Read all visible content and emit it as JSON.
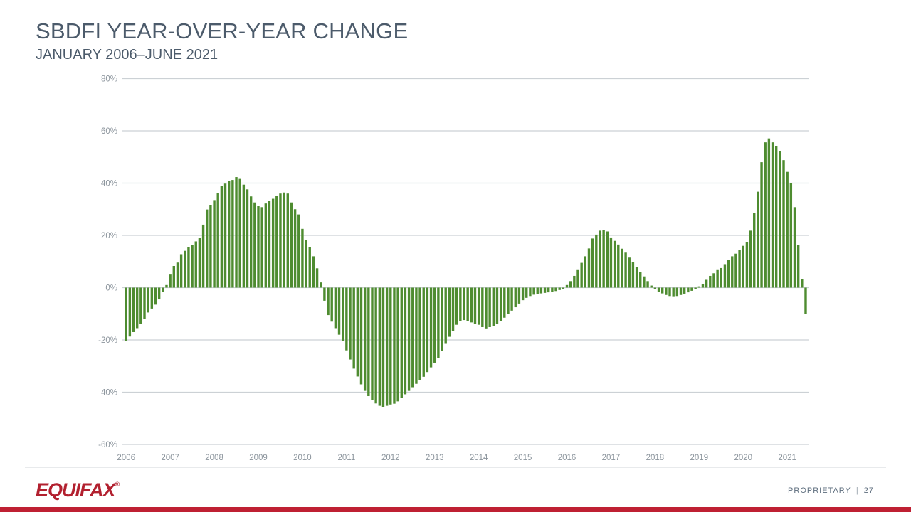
{
  "header": {
    "title": "SBDFI YEAR-OVER-YEAR CHANGE",
    "subtitle": "JANUARY 2006–JUNE 2021"
  },
  "footer": {
    "logo_text": "EQUIFAX",
    "logo_reg": "®",
    "proprietary": "PROPRIETARY",
    "divider": "|",
    "page": "27"
  },
  "colors": {
    "bar_green": "#4e8c30",
    "accent_red": "#bf2033",
    "title_slate": "#4c5b6b",
    "axis_gray": "#8b949c",
    "gridline_gray": "#ccd1d5",
    "footer_gray": "#5d6d7d"
  },
  "chart_data": {
    "type": "bar",
    "title": "SBDFI YEAR-OVER-YEAR CHANGE",
    "subtitle": "JANUARY 2006–JUNE 2021",
    "xlabel": "",
    "ylabel": "",
    "unit": "%",
    "ylim": [
      -60,
      80
    ],
    "grid": "horizontal",
    "legend": "none",
    "y_ticks": [
      {
        "value": 80,
        "label": "80%"
      },
      {
        "value": 60,
        "label": "60%"
      },
      {
        "value": 40,
        "label": "40%"
      },
      {
        "value": 20,
        "label": "20%"
      },
      {
        "value": 0,
        "label": "0%"
      },
      {
        "value": -20,
        "label": "-20%"
      },
      {
        "value": -40,
        "label": "-40%"
      },
      {
        "value": -60,
        "label": "-60%"
      }
    ],
    "x_tick_years": [
      "2006",
      "2007",
      "2008",
      "2009",
      "2010",
      "2011",
      "2012",
      "2013",
      "2014",
      "2015",
      "2016",
      "2017",
      "2018",
      "2019",
      "2020",
      "2021"
    ],
    "frequency": "monthly",
    "start_month": "2006-01",
    "end_month": "2021-06",
    "values_by_year": {
      "2006": [
        -20.5,
        -18.7,
        -17.0,
        -15.5,
        -14.0,
        -12.0,
        -9.5,
        -8.0,
        -6.5,
        -4.5,
        -1.5,
        1.0
      ],
      "2007": [
        5.0,
        8.3,
        9.6,
        12.8,
        14.1,
        15.5,
        16.4,
        17.7,
        19.1,
        24.1,
        29.9,
        31.7
      ],
      "2008": [
        33.5,
        36.2,
        38.9,
        39.8,
        40.9,
        41.2,
        42.3,
        41.6,
        39.4,
        37.6,
        34.9,
        32.6
      ],
      "2009": [
        31.3,
        30.8,
        32.2,
        33.1,
        34.0,
        35.0,
        36.0,
        36.4,
        36.0,
        32.6,
        30.0,
        28.0
      ],
      "2010": [
        22.5,
        18.2,
        15.5,
        12.0,
        7.4,
        2.0,
        -5.0,
        -10.5,
        -13.0,
        -15.5,
        -18.0,
        -20.5
      ],
      "2011": [
        -24.0,
        -27.5,
        -31.0,
        -34.0,
        -37.0,
        -39.5,
        -41.5,
        -43.0,
        -44.3,
        -45.2,
        -45.6,
        -45.2
      ],
      "2012": [
        -44.7,
        -44.4,
        -43.5,
        -42.2,
        -40.8,
        -39.5,
        -38.1,
        -36.8,
        -35.4,
        -34.1,
        -32.3,
        -30.5
      ],
      "2013": [
        -28.7,
        -26.9,
        -24.2,
        -21.5,
        -18.8,
        -16.5,
        -14.2,
        -12.9,
        -12.4,
        -12.9,
        -13.3,
        -13.8
      ],
      "2014": [
        -14.2,
        -15.1,
        -15.6,
        -15.1,
        -14.7,
        -13.8,
        -12.9,
        -11.5,
        -10.2,
        -8.8,
        -7.5,
        -6.1
      ],
      "2015": [
        -4.8,
        -3.9,
        -3.2,
        -2.7,
        -2.4,
        -2.2,
        -2.0,
        -1.8,
        -1.6,
        -1.3,
        -0.9,
        -0.4
      ],
      "2016": [
        1.0,
        2.5,
        4.5,
        7.0,
        9.5,
        12.0,
        15.0,
        18.8,
        20.3,
        21.8,
        22.1,
        21.5
      ],
      "2017": [
        19.2,
        17.9,
        16.5,
        14.9,
        13.4,
        11.5,
        9.7,
        7.9,
        6.1,
        4.3,
        2.5,
        0.8
      ],
      "2018": [
        -0.5,
        -1.5,
        -2.2,
        -2.8,
        -3.2,
        -3.3,
        -3.2,
        -2.8,
        -2.3,
        -1.8,
        -1.2,
        -0.5
      ],
      "2019": [
        0.5,
        1.5,
        3.0,
        4.5,
        5.5,
        7.0,
        7.5,
        9.0,
        10.5,
        12.0,
        13.0,
        14.5
      ],
      "2020": [
        16.0,
        17.5,
        21.8,
        28.6,
        36.7,
        48.0,
        55.6,
        57.1,
        55.6,
        54.1,
        52.3,
        48.8
      ],
      "2021": [
        44.3,
        40.0,
        30.8,
        16.4,
        3.3,
        -10.2
      ]
    }
  }
}
